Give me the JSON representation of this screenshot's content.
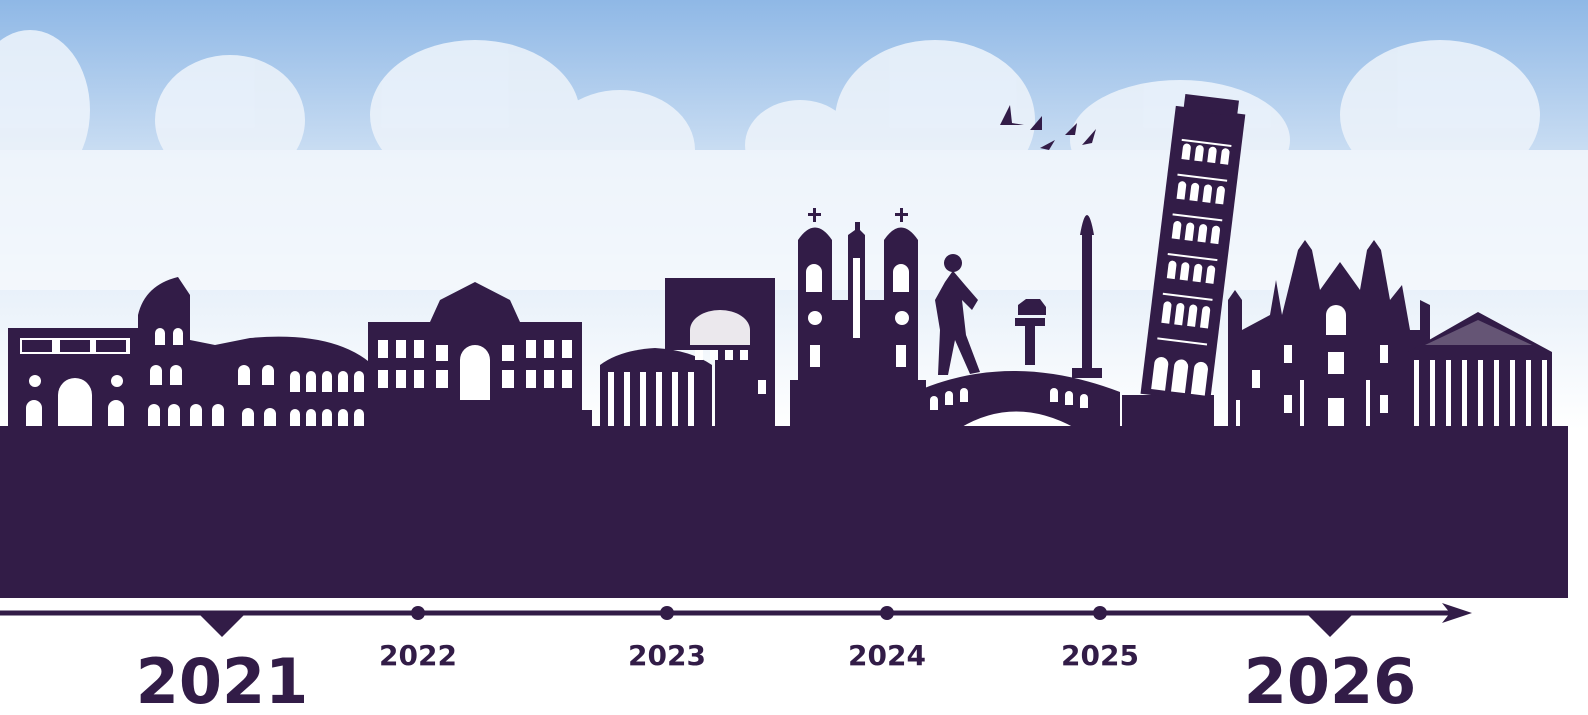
{
  "timeline": {
    "years": [
      "2021",
      "2022",
      "2023",
      "2024",
      "2025",
      "2026"
    ]
  }
}
